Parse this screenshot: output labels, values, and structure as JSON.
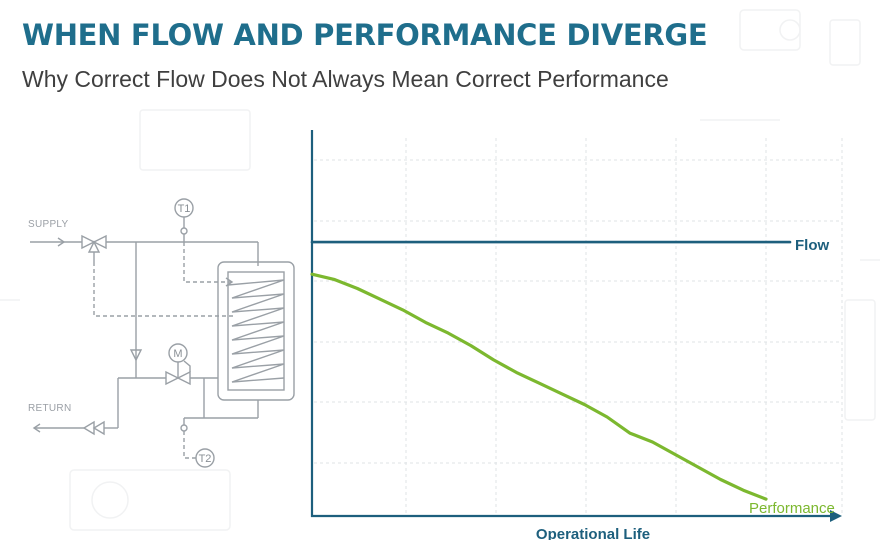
{
  "header": {
    "title": "WHEN FLOW AND PERFORMANCE DIVERGE",
    "subtitle": "Why Correct Flow Does Not Always Mean Correct Performance"
  },
  "schematic": {
    "supply_label": "SUPPLY",
    "return_label": "RETURN",
    "sensor_t1": "T1",
    "sensor_t2": "T2",
    "motor_label": "M"
  },
  "colors": {
    "title": "#1f6e8c",
    "flow": "#1d5f7d",
    "performance": "#7cb82f",
    "axis": "#1d5f7d",
    "grid": "#dfe3e6",
    "schematic": "#9aa0a6"
  },
  "chart_data": {
    "type": "line",
    "title": "",
    "xlabel": "Operational Life",
    "ylabel": "",
    "xlim": [
      0,
      100
    ],
    "ylim": [
      0,
      100
    ],
    "grid": true,
    "series": [
      {
        "name": "Flow",
        "x": [
          0,
          100
        ],
        "y": [
          77,
          77
        ]
      },
      {
        "name": "Performance",
        "x": [
          0,
          5,
          10,
          15,
          20,
          25,
          30,
          35,
          40,
          45,
          50,
          55,
          60,
          65,
          70,
          75,
          80,
          85,
          90,
          95,
          100
        ],
        "y": [
          68,
          66.5,
          64,
          61,
          58,
          54.5,
          51.5,
          48,
          44,
          40.5,
          37.5,
          34.5,
          31.5,
          28,
          23.5,
          21,
          17.5,
          14,
          10.5,
          7.5,
          5
        ]
      }
    ]
  }
}
